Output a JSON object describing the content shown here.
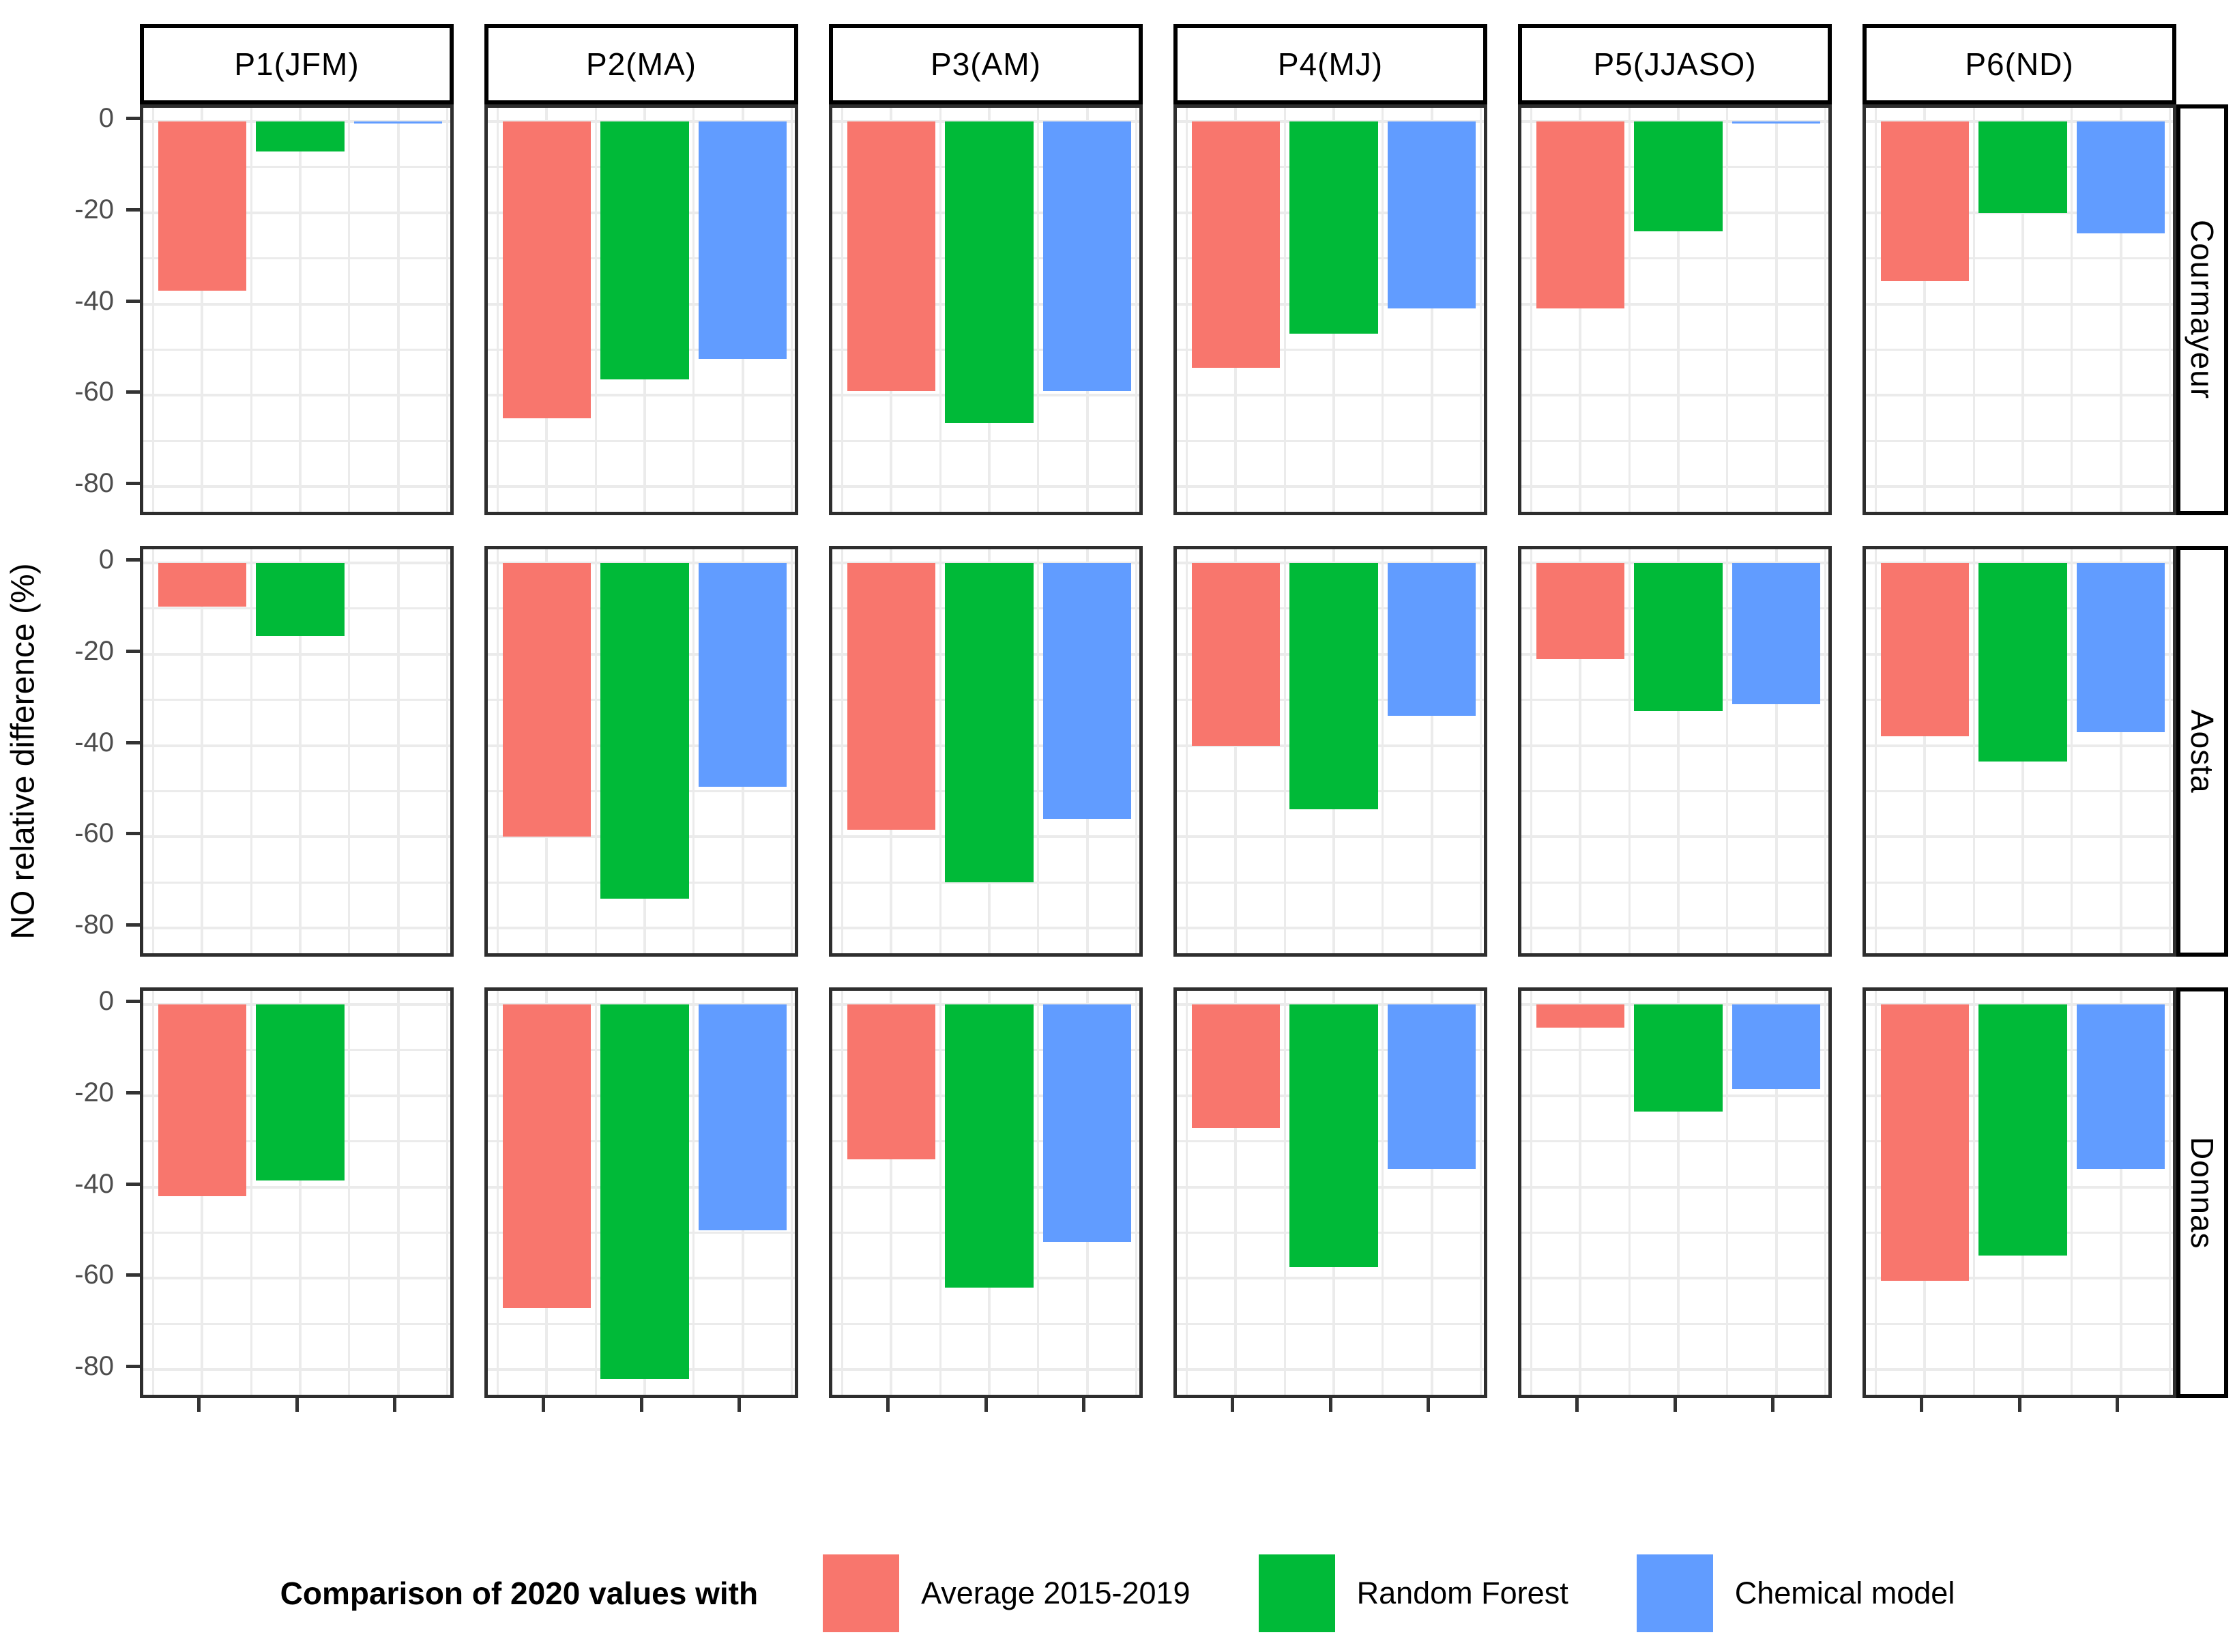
{
  "chart_data": {
    "type": "bar",
    "orientation": "vertical",
    "title": "",
    "xlabel": "",
    "ylabel": "NO relative difference (%)",
    "ylim": [
      -87,
      3
    ],
    "yticks": [
      0,
      -20,
      -40,
      -60,
      -80
    ],
    "ytick_labels": [
      "0",
      "-20",
      "-40",
      "-60",
      "-80"
    ],
    "minor_yticks": [
      -10,
      -30,
      -50,
      -70
    ],
    "grid": true,
    "legend": {
      "title": "Comparison of 2020 values with",
      "position": "bottom"
    },
    "col_facets": [
      "P1(JFM)",
      "P2(MA)",
      "P3(AM)",
      "P4(MJ)",
      "P5(JJASO)",
      "P6(ND)"
    ],
    "row_facets": [
      "Courmayeur",
      "Aosta",
      "Donnas"
    ],
    "series": [
      {
        "name": "Average 2015-2019",
        "color": "#F8766D"
      },
      {
        "name": "Random Forest",
        "color": "#00BA38"
      },
      {
        "name": "Chemical model",
        "color": "#619CFF"
      }
    ],
    "values": {
      "Courmayeur": {
        "P1(JFM)": [
          -37,
          -6.5,
          -0.4
        ],
        "P2(MA)": [
          -65,
          -56.5,
          -52
        ],
        "P3(AM)": [
          -59,
          -66,
          -59
        ],
        "P4(MJ)": [
          -54,
          -46.5,
          -41
        ],
        "P5(JJASO)": [
          -41,
          -24,
          -0.4
        ],
        "P6(ND)": [
          -35,
          -20,
          -24.5
        ]
      },
      "Aosta": {
        "P1(JFM)": [
          -9.5,
          -16,
          null
        ],
        "P2(MA)": [
          -60,
          -73.5,
          -49
        ],
        "P3(AM)": [
          -58.5,
          -70,
          -56
        ],
        "P4(MJ)": [
          -40,
          -54,
          -33.5
        ],
        "P5(JJASO)": [
          -21,
          -32.5,
          -31
        ],
        "P6(ND)": [
          -38,
          -43.5,
          -37
        ]
      },
      "Donnas": {
        "P1(JFM)": [
          -42,
          -38.5,
          null
        ],
        "P2(MA)": [
          -66.5,
          -82,
          -49.5
        ],
        "P3(AM)": [
          -34,
          -62,
          -52
        ],
        "P4(MJ)": [
          -27,
          -57.5,
          -36
        ],
        "P5(JJASO)": [
          -5,
          -23.5,
          -18.5
        ],
        "P6(ND)": [
          -60.5,
          -55,
          -36
        ]
      }
    },
    "style": {
      "panel_background": "#FFFFFF",
      "gridline_color": "#EBEBEB",
      "panel_border_color": "#2E2E2E",
      "strip_border_color": "#000000",
      "axis_text_color": "#4D4D4D",
      "tick_color": "#333333"
    }
  }
}
